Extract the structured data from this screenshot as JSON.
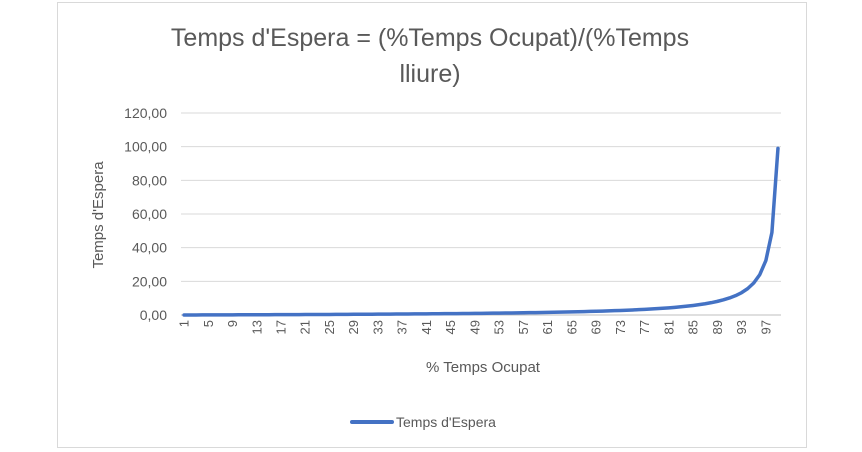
{
  "chart_data": {
    "type": "line",
    "title_lines": [
      "Temps d'Espera = (%Temps Ocupat)/(%Temps",
      "lliure)"
    ],
    "xlabel": "% Temps Ocupat",
    "ylabel": "Temps d'Espera",
    "ylim": [
      0,
      120
    ],
    "y_ticks": [
      "0,00",
      "20,00",
      "40,00",
      "60,00",
      "80,00",
      "100,00",
      "120,00"
    ],
    "x_tick_labels": [
      "1",
      "5",
      "9",
      "13",
      "17",
      "21",
      "25",
      "29",
      "33",
      "37",
      "41",
      "45",
      "49",
      "53",
      "57",
      "61",
      "65",
      "69",
      "73",
      "77",
      "81",
      "85",
      "89",
      "93",
      "97"
    ],
    "grid": true,
    "legend_position": "bottom",
    "series": [
      {
        "name": "Temps d'Espera",
        "color": "#4472c4",
        "x": [
          1,
          2,
          3,
          4,
          5,
          6,
          7,
          8,
          9,
          10,
          11,
          12,
          13,
          14,
          15,
          16,
          17,
          18,
          19,
          20,
          21,
          22,
          23,
          24,
          25,
          26,
          27,
          28,
          29,
          30,
          31,
          32,
          33,
          34,
          35,
          36,
          37,
          38,
          39,
          40,
          41,
          42,
          43,
          44,
          45,
          46,
          47,
          48,
          49,
          50,
          51,
          52,
          53,
          54,
          55,
          56,
          57,
          58,
          59,
          60,
          61,
          62,
          63,
          64,
          65,
          66,
          67,
          68,
          69,
          70,
          71,
          72,
          73,
          74,
          75,
          76,
          77,
          78,
          79,
          80,
          81,
          82,
          83,
          84,
          85,
          86,
          87,
          88,
          89,
          90,
          91,
          92,
          93,
          94,
          95,
          96,
          97,
          98,
          99
        ],
        "values": [
          0.01,
          0.02,
          0.03,
          0.04,
          0.05,
          0.06,
          0.08,
          0.09,
          0.1,
          0.11,
          0.12,
          0.14,
          0.15,
          0.16,
          0.18,
          0.19,
          0.2,
          0.22,
          0.23,
          0.25,
          0.27,
          0.28,
          0.3,
          0.32,
          0.33,
          0.35,
          0.37,
          0.39,
          0.41,
          0.43,
          0.45,
          0.47,
          0.49,
          0.52,
          0.54,
          0.56,
          0.59,
          0.61,
          0.64,
          0.67,
          0.69,
          0.72,
          0.75,
          0.79,
          0.82,
          0.85,
          0.89,
          0.92,
          0.96,
          1.0,
          1.04,
          1.08,
          1.13,
          1.17,
          1.22,
          1.27,
          1.33,
          1.38,
          1.44,
          1.5,
          1.56,
          1.63,
          1.7,
          1.78,
          1.86,
          1.94,
          2.03,
          2.13,
          2.23,
          2.33,
          2.45,
          2.57,
          2.7,
          2.85,
          3.0,
          3.17,
          3.35,
          3.55,
          3.76,
          4.0,
          4.26,
          4.56,
          4.88,
          5.25,
          5.67,
          6.14,
          6.69,
          7.33,
          8.09,
          9.0,
          10.11,
          11.5,
          13.29,
          15.67,
          19.0,
          24.0,
          32.33,
          49.0,
          99.0
        ]
      }
    ]
  }
}
